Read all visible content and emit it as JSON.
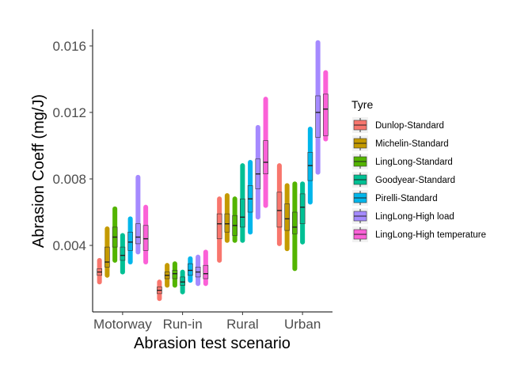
{
  "chart_data": {
    "type": "box",
    "xlabel": "Abrasion test scenario",
    "ylabel": "Abrasion Coeff (mg/J)",
    "ylim": [
      0.0,
      0.017
    ],
    "yticks": [
      0.004,
      0.008,
      0.012,
      0.016
    ],
    "ytick_labels": [
      "0.004",
      "0.008",
      "0.012",
      "0.016"
    ],
    "categories": [
      "Motorway",
      "Run-in",
      "Rural",
      "Urban"
    ],
    "legend": {
      "title": "Tyre",
      "position": "right"
    },
    "series": [
      {
        "name": "Dunlop-Standard",
        "color": "#F8766D",
        "boxes": [
          [
            0.0018,
            0.0022,
            0.0024,
            0.0026,
            0.0031
          ],
          [
            0.0008,
            0.0011,
            0.0013,
            0.0015,
            0.0018
          ],
          [
            0.0031,
            0.0044,
            0.0053,
            0.0059,
            0.0068
          ],
          [
            0.0041,
            0.0051,
            0.0061,
            0.0072,
            0.0088
          ]
        ]
      },
      {
        "name": "Michelin-Standard",
        "color": "#C49A00",
        "boxes": [
          [
            0.0022,
            0.0027,
            0.003,
            0.0039,
            0.005
          ],
          [
            0.0016,
            0.002,
            0.0022,
            0.0024,
            0.0028
          ],
          [
            0.0043,
            0.0048,
            0.0053,
            0.0059,
            0.007
          ],
          [
            0.0038,
            0.0049,
            0.0056,
            0.0065,
            0.0076
          ]
        ]
      },
      {
        "name": "LingLong-Standard",
        "color": "#53B400",
        "boxes": [
          [
            0.0031,
            0.0039,
            0.0045,
            0.0051,
            0.0062
          ],
          [
            0.0016,
            0.002,
            0.0023,
            0.0025,
            0.0029
          ],
          [
            0.0043,
            0.0046,
            0.0052,
            0.0058,
            0.0068
          ],
          [
            0.0026,
            0.0047,
            0.0051,
            0.006,
            0.0077
          ]
        ]
      },
      {
        "name": "Goodyear-Standard",
        "color": "#00C094",
        "boxes": [
          [
            0.0024,
            0.0031,
            0.0034,
            0.0039,
            0.0046
          ],
          [
            0.0012,
            0.0016,
            0.0018,
            0.0021,
            0.0024
          ],
          [
            0.0043,
            0.0051,
            0.0057,
            0.0068,
            0.0088
          ],
          [
            0.0042,
            0.0053,
            0.0063,
            0.0071,
            0.0077
          ]
        ]
      },
      {
        "name": "Pirelli-Standard",
        "color": "#00B6EB",
        "boxes": [
          [
            0.003,
            0.0037,
            0.0042,
            0.0048,
            0.0056
          ],
          [
            0.0019,
            0.0022,
            0.0025,
            0.0029,
            0.0032
          ],
          [
            0.0048,
            0.006,
            0.0068,
            0.0076,
            0.009
          ],
          [
            0.0066,
            0.0079,
            0.0088,
            0.0096,
            0.011
          ]
        ]
      },
      {
        "name": "LingLong-High load",
        "color": "#A58AFF",
        "boxes": [
          [
            0.0036,
            0.0041,
            0.0045,
            0.0053,
            0.0081
          ],
          [
            0.0017,
            0.0021,
            0.0024,
            0.0027,
            0.0033
          ],
          [
            0.0057,
            0.0074,
            0.0083,
            0.0092,
            0.0111
          ],
          [
            0.0084,
            0.0105,
            0.012,
            0.013,
            0.0162
          ]
        ]
      },
      {
        "name": "LingLong-High temperature",
        "color": "#FB61D7",
        "boxes": [
          [
            0.003,
            0.0037,
            0.0044,
            0.0052,
            0.0063
          ],
          [
            0.0017,
            0.002,
            0.0023,
            0.0028,
            0.0036
          ],
          [
            0.0064,
            0.0083,
            0.009,
            0.0103,
            0.0128
          ],
          [
            0.0104,
            0.0106,
            0.0122,
            0.0131,
            0.0144
          ]
        ]
      }
    ]
  }
}
